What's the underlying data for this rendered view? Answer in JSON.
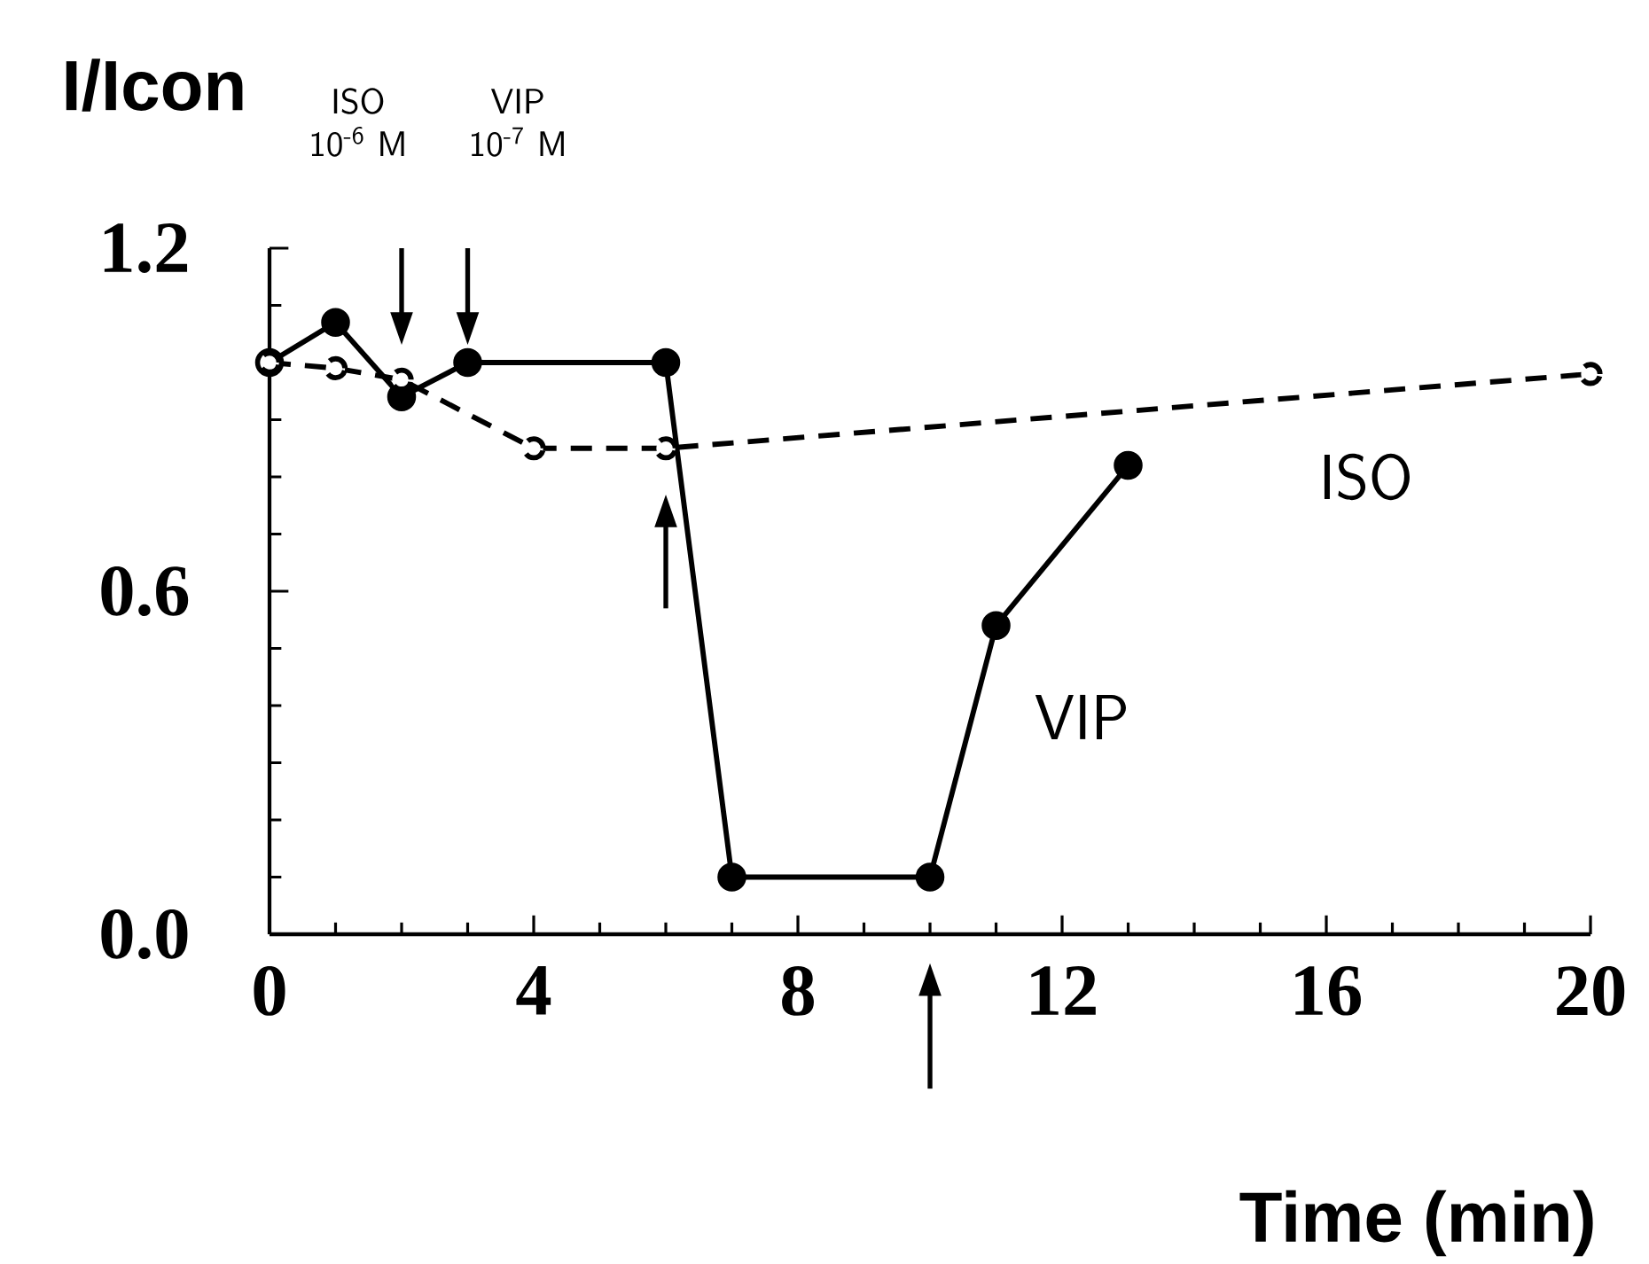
{
  "chart_data": {
    "type": "line",
    "xlabel": "Time (min)",
    "ylabel": "I/Icon",
    "xlim": [
      0,
      20
    ],
    "xticks": [
      0,
      4,
      8,
      12,
      16,
      20
    ],
    "ylim": [
      0,
      1.2
    ],
    "yticks": [
      {
        "value": 0,
        "label": "0.0"
      },
      {
        "value": 0.6,
        "label": "0.6"
      },
      {
        "value": 1.2,
        "label": "1.2"
      }
    ],
    "series": [
      {
        "name": "VIP",
        "color": "#000000",
        "marker": "circle",
        "line_style": "solid",
        "x": [
          0,
          1,
          2,
          3,
          6,
          7,
          10,
          11,
          13
        ],
        "values": [
          1.0,
          1.07,
          0.94,
          1.0,
          1.0,
          0.1,
          0.1,
          0.54,
          0.82
        ]
      },
      {
        "name": "ISO",
        "color": "#000000",
        "marker": "circle",
        "line_style": "dashed",
        "x": [
          0,
          1,
          2,
          4,
          6,
          20
        ],
        "values": [
          1.0,
          0.99,
          0.97,
          0.85,
          0.85,
          0.98
        ]
      }
    ],
    "annotations": [
      "ISO 10$^{-6}$ M",
      "VIP 10$^{-7}$ M"
    ],
    "grid": false,
    "legend": false
  }
}
